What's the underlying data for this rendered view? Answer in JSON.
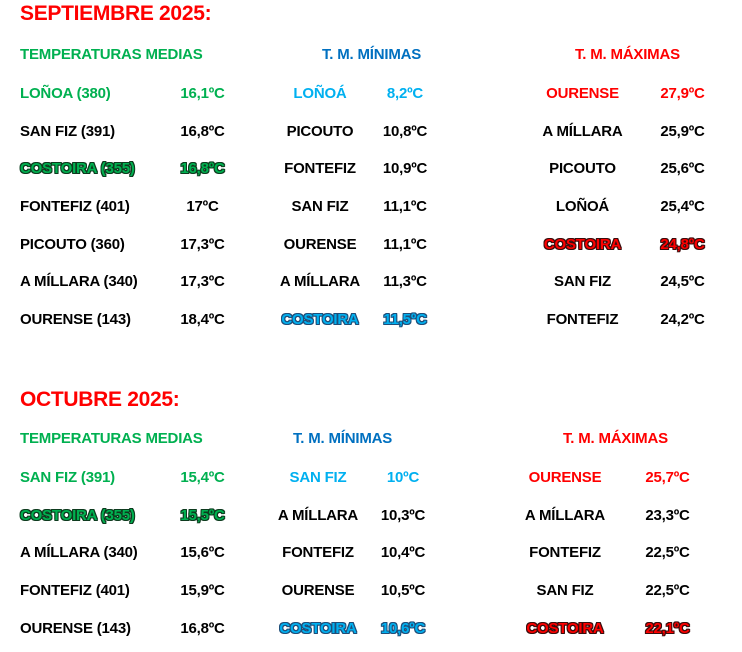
{
  "colors": {
    "red": "#ff0000",
    "green": "#00b050",
    "blue_header": "#0070c0",
    "light_blue": "#00b0f0",
    "black": "#000000",
    "background": "#ffffff"
  },
  "sections": [
    {
      "id": "septiembre",
      "title": "SEPTIEMBRE 2025:",
      "columns": [
        {
          "header": "TEMPERATURAS MEDIAS",
          "rows": [
            {
              "name": "LOÑOA (380)",
              "value": "16,1ºC",
              "style": "green"
            },
            {
              "name": "SAN FIZ (391)",
              "value": "16,8ºC",
              "style": "black"
            },
            {
              "name": "COSTOIRA (355)",
              "value": "16,8ºC",
              "style": "green-outline"
            },
            {
              "name": "FONTEFIZ (401)",
              "value": "17ºC",
              "style": "black"
            },
            {
              "name": "PICOUTO (360)",
              "value": "17,3ºC",
              "style": "black"
            },
            {
              "name": "A MÍLLARA (340)",
              "value": "17,3ºC",
              "style": "black"
            },
            {
              "name": "OURENSE (143)",
              "value": "18,4ºC",
              "style": "black"
            }
          ]
        },
        {
          "header": "T. M. MÍNIMAS",
          "rows": [
            {
              "name": "LOÑOÁ",
              "value": "8,2ºC",
              "style": "light-blue"
            },
            {
              "name": "PICOUTO",
              "value": "10,8ºC",
              "style": "black"
            },
            {
              "name": "FONTEFIZ",
              "value": "10,9ºC",
              "style": "black"
            },
            {
              "name": "SAN FIZ",
              "value": "11,1ºC",
              "style": "black"
            },
            {
              "name": "OURENSE",
              "value": "11,1ºC",
              "style": "black"
            },
            {
              "name": "A MÍLLARA",
              "value": "11,3ºC",
              "style": "black"
            },
            {
              "name": "COSTOIRA",
              "value": "11,5ºC",
              "style": "blue-outline"
            }
          ]
        },
        {
          "header": "T. M. MÁXIMAS",
          "rows": [
            {
              "name": "OURENSE",
              "value": "27,9ºC",
              "style": "red"
            },
            {
              "name": "A MÍLLARA",
              "value": "25,9ºC",
              "style": "black"
            },
            {
              "name": "PICOUTO",
              "value": "25,6ºC",
              "style": "black"
            },
            {
              "name": "LOÑOÁ",
              "value": "25,4ºC",
              "style": "black"
            },
            {
              "name": "COSTOIRA",
              "value": "24,8ºC",
              "style": "red-outline"
            },
            {
              "name": "SAN FIZ",
              "value": "24,5ºC",
              "style": "black"
            },
            {
              "name": "FONTEFIZ",
              "value": "24,2ºC",
              "style": "black"
            }
          ]
        }
      ]
    },
    {
      "id": "octubre",
      "title": "OCTUBRE 2025:",
      "columns": [
        {
          "header": "TEMPERATURAS MEDIAS",
          "rows": [
            {
              "name": "SAN FIZ (391)",
              "value": "15,4ºC",
              "style": "green"
            },
            {
              "name": "COSTOIRA (355)",
              "value": "15,5ºC",
              "style": "green-outline"
            },
            {
              "name": "A MÍLLARA (340)",
              "value": "15,6ºC",
              "style": "black"
            },
            {
              "name": "FONTEFIZ (401)",
              "value": "15,9ºC",
              "style": "black"
            },
            {
              "name": "OURENSE (143)",
              "value": "16,8ºC",
              "style": "black"
            }
          ]
        },
        {
          "header": "T. M. MÍNIMAS",
          "rows": [
            {
              "name": "SAN FIZ",
              "value": "10ºC",
              "style": "light-blue"
            },
            {
              "name": "A MÍLLARA",
              "value": "10,3ºC",
              "style": "black"
            },
            {
              "name": "FONTEFIZ",
              "value": "10,4ºC",
              "style": "black"
            },
            {
              "name": "OURENSE",
              "value": "10,5ºC",
              "style": "black"
            },
            {
              "name": "COSTOIRA",
              "value": "10,6ºC",
              "style": "blue-outline"
            }
          ]
        },
        {
          "header": "T. M. MÁXIMAS",
          "rows": [
            {
              "name": "OURENSE",
              "value": "25,7ºC",
              "style": "red"
            },
            {
              "name": "A MÍLLARA",
              "value": "23,3ºC",
              "style": "black"
            },
            {
              "name": "FONTEFIZ",
              "value": "22,5ºC",
              "style": "black"
            },
            {
              "name": "SAN FIZ",
              "value": "22,5ºC",
              "style": "black"
            },
            {
              "name": "COSTOIRA",
              "value": "22,1ºC",
              "style": "red-outline"
            }
          ]
        }
      ]
    }
  ]
}
